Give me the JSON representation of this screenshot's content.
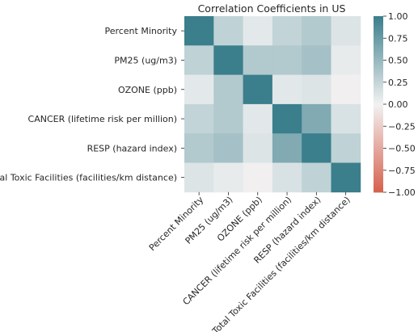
{
  "chart_data": {
    "type": "heatmap",
    "title": "Correlation Coefficients in US",
    "row_labels": [
      "Percent Minority",
      "PM25 (ug/m3)",
      "OZONE (ppb)",
      "CANCER (lifetime risk per million)",
      "RESP (hazard index)",
      "Total Toxic Facilities (facilities/km distance)"
    ],
    "col_labels": [
      "Percent Minority",
      "PM25 (ug/m3)",
      "OZONE (ppb)",
      "CANCER (lifetime risk per million)",
      "RESP (hazard index)",
      "Total Toxic Facilities (facilities/km distance)"
    ],
    "values": [
      [
        1.0,
        0.28,
        0.08,
        0.26,
        0.35,
        0.12
      ],
      [
        0.28,
        1.0,
        0.35,
        0.35,
        0.42,
        0.06
      ],
      [
        0.08,
        0.35,
        1.0,
        0.09,
        0.12,
        -0.02
      ],
      [
        0.26,
        0.35,
        0.09,
        1.0,
        0.62,
        0.14
      ],
      [
        0.35,
        0.42,
        0.12,
        0.62,
        1.0,
        0.28
      ],
      [
        0.12,
        0.06,
        -0.02,
        0.14,
        0.28,
        1.0
      ]
    ],
    "vmin": -1.0,
    "vmax": 1.0,
    "colorbar_ticks": [
      "1.00",
      "0.75",
      "0.50",
      "0.25",
      "0.00",
      "−0.25",
      "−0.50",
      "−0.75",
      "−1.00"
    ],
    "colormap": {
      "negative_end": "#d6604d",
      "center": "#f2f2f2",
      "positive_end": "#3b7e8c"
    },
    "grid": false
  }
}
